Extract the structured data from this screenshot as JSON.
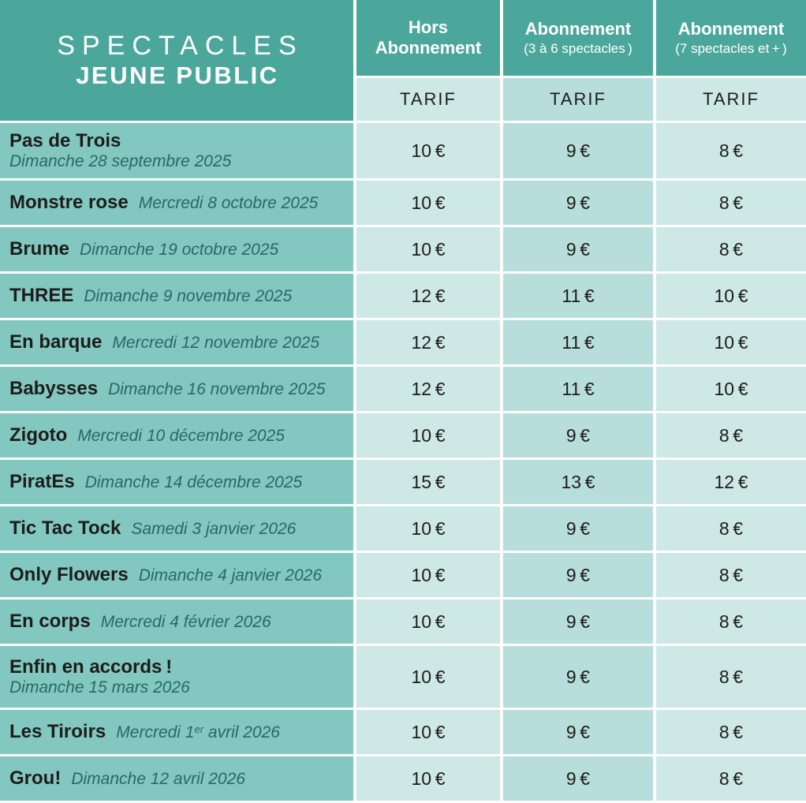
{
  "brand": {
    "line1": "SPECTACLES",
    "line2": "JEUNE PUBLIC"
  },
  "columns": [
    {
      "main": "Hors\nAbonnement",
      "sub": ""
    },
    {
      "main": "Abonnement",
      "sub": "(3 à 6 spectacles )"
    },
    {
      "main": "Abonnement",
      "sub": "(7 spectacles et + )"
    }
  ],
  "tarif_label": "TARIF",
  "colors": {
    "header_teal": "#4ba79c",
    "row_label_teal": "#82c7c0",
    "price_light": "#cde8e5",
    "price_mid": "#b7deda",
    "date_text": "#266b63",
    "dark_text": "#1d1d1b"
  },
  "rows": [
    {
      "name": "Pas de Trois",
      "date": "Dimanche 28 septembre 2025",
      "prices": [
        "10 €",
        "9 €",
        "8 €"
      ]
    },
    {
      "name": "Monstre rose",
      "date": "Mercredi 8 octobre 2025",
      "prices": [
        "10 €",
        "9 €",
        "8 €"
      ]
    },
    {
      "name": "Brume",
      "date": "Dimanche 19 octobre 2025",
      "prices": [
        "10 €",
        "9 €",
        "8 €"
      ]
    },
    {
      "name": "THREE",
      "date": "Dimanche 9 novembre 2025",
      "prices": [
        "12 €",
        "11 €",
        "10 €"
      ]
    },
    {
      "name": "En barque",
      "date": "Mercredi 12 novembre 2025",
      "prices": [
        "12 €",
        "11 €",
        "10 €"
      ]
    },
    {
      "name": "Babysses",
      "date": "Dimanche 16 novembre 2025",
      "prices": [
        "12 €",
        "11 €",
        "10 €"
      ]
    },
    {
      "name": "Zigoto",
      "date": "Mercredi 10 décembre 2025",
      "prices": [
        "10 €",
        "9 €",
        "8 €"
      ]
    },
    {
      "name": "PiratEs",
      "date": "Dimanche 14 décembre 2025",
      "prices": [
        "15 €",
        "13 €",
        "12 €"
      ]
    },
    {
      "name": "Tic Tac Tock",
      "date": "Samedi 3 janvier 2026",
      "prices": [
        "10 €",
        "9 €",
        "8 €"
      ]
    },
    {
      "name": "Only Flowers",
      "date": "Dimanche 4 janvier 2026",
      "prices": [
        "10 €",
        "9 €",
        "8 €"
      ]
    },
    {
      "name": "En corps",
      "date": "Mercredi 4 février 2026",
      "prices": [
        "10 €",
        "9 €",
        "8 €"
      ]
    },
    {
      "name": "Enfin en accords !",
      "date": "Dimanche 15 mars 2026",
      "prices": [
        "10 €",
        "9 €",
        "8 €"
      ]
    },
    {
      "name": "Les Tiroirs",
      "date_pre": "Mercredi 1",
      "date_sup": "er",
      "date_post": " avril 2026",
      "prices": [
        "10 €",
        "9 €",
        "8 €"
      ]
    },
    {
      "name": "Grou!",
      "date": "Dimanche 12 avril 2026",
      "prices": [
        "10 €",
        "9 €",
        "8 €"
      ]
    }
  ]
}
